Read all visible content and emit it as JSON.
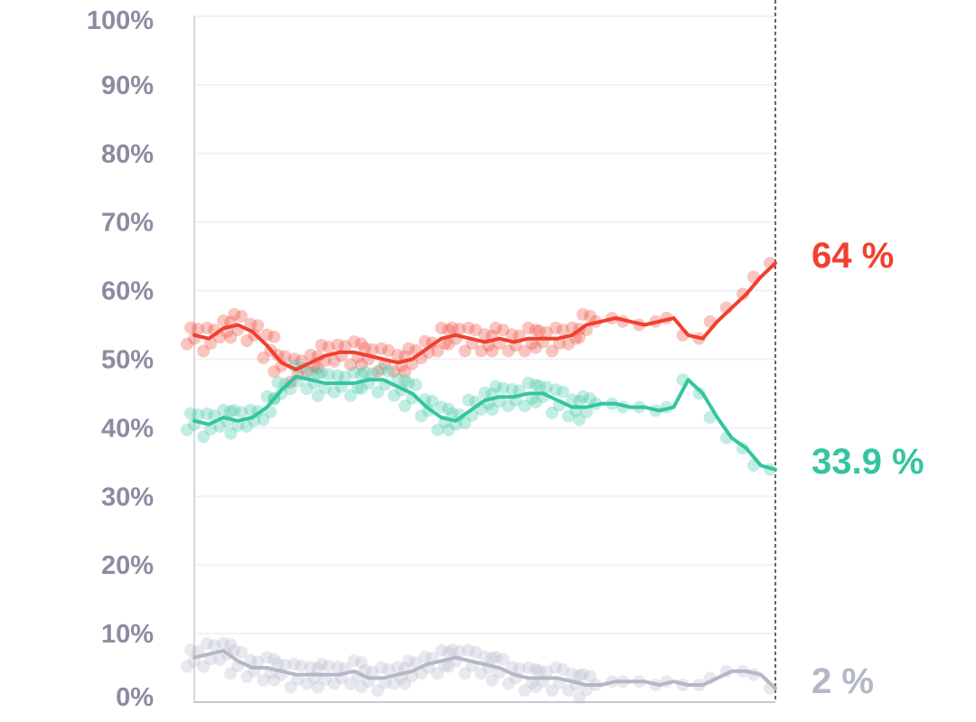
{
  "chart_data": {
    "type": "line",
    "title": "",
    "xlabel": "",
    "ylabel": "",
    "ylim": [
      0,
      100
    ],
    "y_ticks": [
      "0%",
      "10%",
      "20%",
      "30%",
      "40%",
      "50%",
      "60%",
      "70%",
      "80%",
      "90%",
      "100%"
    ],
    "grid": true,
    "x_points": 41,
    "series": [
      {
        "name": "red",
        "color": "#f0402e",
        "end_label": "64 %",
        "values": [
          53.5,
          53.0,
          54.5,
          55.0,
          54.0,
          52.0,
          49.5,
          48.5,
          49.5,
          50.5,
          51.0,
          51.0,
          50.5,
          50.0,
          49.5,
          50.0,
          51.5,
          53.0,
          53.5,
          53.0,
          52.5,
          53.0,
          52.5,
          53.0,
          53.0,
          53.0,
          53.5,
          55.0,
          55.5,
          56.0,
          55.5,
          55.0,
          55.5,
          56.0,
          53.5,
          53.0,
          55.5,
          57.5,
          59.5,
          62.0,
          64.0
        ]
      },
      {
        "name": "green",
        "color": "#34c5a0",
        "end_label": "33.9 %",
        "values": [
          41.0,
          40.5,
          41.5,
          41.0,
          41.5,
          43.0,
          45.5,
          47.5,
          47.0,
          46.5,
          46.5,
          46.5,
          47.0,
          47.0,
          46.0,
          45.0,
          43.0,
          41.5,
          41.0,
          42.5,
          44.0,
          44.5,
          44.5,
          45.0,
          45.0,
          44.0,
          43.0,
          43.0,
          43.5,
          43.5,
          43.0,
          43.0,
          42.5,
          43.0,
          47.0,
          45.0,
          41.5,
          38.5,
          37.0,
          34.5,
          33.9
        ]
      },
      {
        "name": "grey",
        "color": "#b4b7c6",
        "end_label": "2 %",
        "values": [
          6.5,
          7.0,
          7.5,
          6.0,
          5.0,
          5.0,
          4.5,
          4.0,
          4.0,
          4.0,
          4.0,
          4.5,
          3.5,
          3.5,
          4.0,
          4.5,
          5.5,
          6.0,
          6.5,
          6.0,
          5.5,
          5.0,
          4.0,
          3.5,
          3.5,
          3.5,
          3.0,
          2.5,
          2.5,
          3.0,
          3.0,
          3.0,
          2.5,
          3.0,
          2.5,
          2.5,
          3.5,
          4.5,
          4.5,
          4.0,
          2.0
        ]
      }
    ]
  }
}
